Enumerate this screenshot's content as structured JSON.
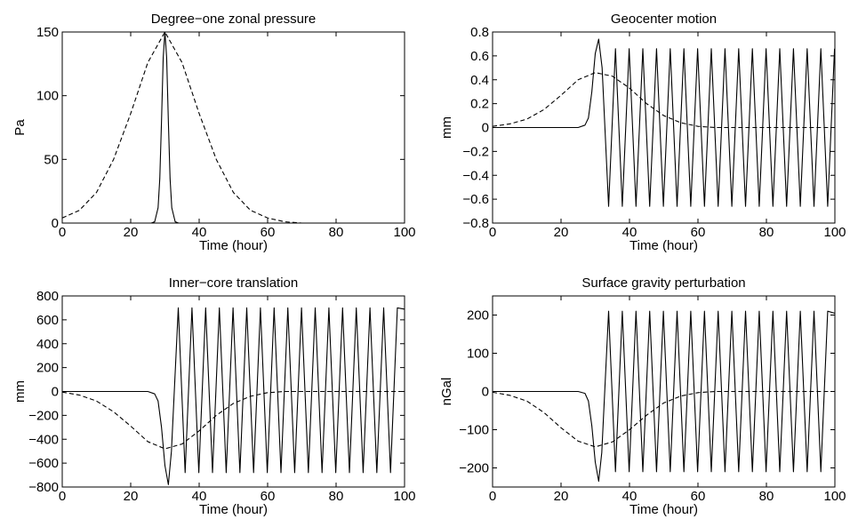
{
  "chart_data": [
    {
      "type": "line",
      "title": "Degree−one zonal pressure",
      "xlabel": "Time (hour)",
      "ylabel": "Pa",
      "xlim": [
        0,
        100
      ],
      "ylim": [
        0,
        150
      ],
      "xticks": [
        0,
        20,
        40,
        60,
        80,
        100
      ],
      "yticks": [
        0,
        50,
        100,
        150
      ],
      "x_tick_labels": [
        "0",
        "20",
        "40",
        "60",
        "80",
        "100"
      ],
      "y_tick_labels": [
        "0",
        "50",
        "100",
        "150"
      ],
      "grid": false,
      "series": [
        {
          "style": "solid",
          "x": [
            0,
            26,
            27,
            28,
            28.5,
            29,
            29.5,
            30,
            30.5,
            31,
            31.5,
            32,
            33,
            34,
            100
          ],
          "y": [
            0,
            0,
            1,
            12,
            35,
            80,
            130,
            150,
            130,
            80,
            35,
            12,
            1,
            0,
            0
          ]
        },
        {
          "style": "dashed",
          "x": [
            0,
            5,
            10,
            15,
            20,
            25,
            30,
            35,
            40,
            45,
            50,
            55,
            60,
            65,
            70,
            80,
            90,
            100
          ],
          "y": [
            4,
            10,
            24,
            50,
            86,
            126,
            150,
            126,
            86,
            50,
            24,
            10,
            4,
            1,
            0,
            0,
            0,
            0
          ]
        }
      ]
    },
    {
      "type": "line",
      "title": "Geocenter motion",
      "xlabel": "Time (hour)",
      "ylabel": "mm",
      "xlim": [
        0,
        100
      ],
      "ylim": [
        -0.8,
        0.8
      ],
      "xticks": [
        0,
        20,
        40,
        60,
        80,
        100
      ],
      "yticks": [
        -0.8,
        -0.6,
        -0.4,
        -0.2,
        0,
        0.2,
        0.4,
        0.6,
        0.8
      ],
      "x_tick_labels": [
        "0",
        "20",
        "40",
        "60",
        "80",
        "100"
      ],
      "y_tick_labels": [
        "−0.8",
        "−0.6",
        "−0.4",
        "−0.2",
        "0",
        "0.2",
        "0.4",
        "0.6",
        "0.8"
      ],
      "grid": false,
      "series": [
        {
          "style": "solid",
          "x": [
            0,
            25,
            27,
            28,
            29,
            30,
            31,
            32,
            33.9,
            35.9,
            37.9,
            39.9,
            41.9,
            43.9,
            45.9,
            47.9,
            49.9,
            51.9,
            53.9,
            55.9,
            57.9,
            59.9,
            61.9,
            63.9,
            65.9,
            67.9,
            69.9,
            71.9,
            73.9,
            75.9,
            77.9,
            79.9,
            81.9,
            83.9,
            85.9,
            87.9,
            89.9,
            91.9,
            93.9,
            95.9,
            97.9,
            99.9
          ],
          "y": [
            0,
            0,
            0.02,
            0.08,
            0.3,
            0.62,
            0.74,
            0.5,
            -0.66,
            0.66,
            -0.66,
            0.66,
            -0.66,
            0.66,
            -0.66,
            0.66,
            -0.66,
            0.66,
            -0.66,
            0.66,
            -0.66,
            0.66,
            -0.66,
            0.66,
            -0.66,
            0.66,
            -0.66,
            0.66,
            -0.66,
            0.66,
            -0.66,
            0.66,
            -0.66,
            0.66,
            -0.66,
            0.66,
            -0.66,
            0.66,
            -0.66,
            0.66,
            -0.66,
            0.66
          ]
        },
        {
          "style": "dashed",
          "x": [
            0,
            5,
            10,
            15,
            20,
            25,
            30,
            35,
            40,
            45,
            50,
            55,
            60,
            65,
            70,
            80,
            90,
            100
          ],
          "y": [
            0.01,
            0.03,
            0.07,
            0.15,
            0.27,
            0.4,
            0.46,
            0.43,
            0.33,
            0.2,
            0.1,
            0.04,
            0.01,
            0,
            0,
            0,
            0,
            0
          ]
        }
      ]
    },
    {
      "type": "line",
      "title": "Inner−core translation",
      "xlabel": "Time (hour)",
      "ylabel": "mm",
      "xlim": [
        0,
        100
      ],
      "ylim": [
        -800,
        800
      ],
      "xticks": [
        0,
        20,
        40,
        60,
        80,
        100
      ],
      "yticks": [
        -800,
        -600,
        -400,
        -200,
        0,
        200,
        400,
        600,
        800
      ],
      "x_tick_labels": [
        "0",
        "20",
        "40",
        "60",
        "80",
        "100"
      ],
      "y_tick_labels": [
        "−800",
        "−600",
        "−400",
        "−200",
        "0",
        "200",
        "400",
        "600",
        "800"
      ],
      "grid": false,
      "series": [
        {
          "style": "solid",
          "x": [
            0,
            25,
            27,
            28,
            29,
            30,
            31,
            31.9,
            33.9,
            35.9,
            37.9,
            39.9,
            41.9,
            43.9,
            45.9,
            47.9,
            49.9,
            51.9,
            53.9,
            55.9,
            57.9,
            59.9,
            61.9,
            63.9,
            65.9,
            67.9,
            69.9,
            71.9,
            73.9,
            75.9,
            77.9,
            79.9,
            81.9,
            83.9,
            85.9,
            87.9,
            89.9,
            91.9,
            93.9,
            95.9,
            97.9,
            99.9
          ],
          "y": [
            0,
            0,
            -20,
            -80,
            -300,
            -620,
            -780,
            -500,
            700,
            -680,
            700,
            -680,
            700,
            -680,
            700,
            -680,
            700,
            -680,
            700,
            -680,
            700,
            -680,
            700,
            -680,
            700,
            -680,
            700,
            -680,
            700,
            -680,
            700,
            -680,
            700,
            -680,
            700,
            -680,
            700,
            -680,
            700,
            -680,
            700,
            690
          ]
        },
        {
          "style": "dashed",
          "x": [
            0,
            5,
            10,
            15,
            20,
            25,
            30,
            35,
            40,
            45,
            50,
            55,
            60,
            65,
            70,
            80,
            90,
            100
          ],
          "y": [
            -5,
            -30,
            -80,
            -170,
            -290,
            -420,
            -480,
            -440,
            -330,
            -200,
            -100,
            -40,
            -10,
            0,
            0,
            0,
            0,
            0
          ]
        }
      ]
    },
    {
      "type": "line",
      "title": "Surface gravity perturbation",
      "xlabel": "Time (hour)",
      "ylabel": "nGal",
      "xlim": [
        0,
        100
      ],
      "ylim": [
        -250,
        250
      ],
      "xticks": [
        0,
        20,
        40,
        60,
        80,
        100
      ],
      "yticks": [
        -200,
        -100,
        0,
        100,
        200
      ],
      "x_tick_labels": [
        "0",
        "20",
        "40",
        "60",
        "80",
        "100"
      ],
      "y_tick_labels": [
        "−200",
        "−100",
        "0",
        "100",
        "200"
      ],
      "grid": false,
      "series": [
        {
          "style": "solid",
          "x": [
            0,
            25,
            27,
            28,
            29,
            30,
            31,
            31.9,
            33.9,
            35.9,
            37.9,
            39.9,
            41.9,
            43.9,
            45.9,
            47.9,
            49.9,
            51.9,
            53.9,
            55.9,
            57.9,
            59.9,
            61.9,
            63.9,
            65.9,
            67.9,
            69.9,
            71.9,
            73.9,
            75.9,
            77.9,
            79.9,
            81.9,
            83.9,
            85.9,
            87.9,
            89.9,
            91.9,
            93.9,
            95.9,
            97.9,
            99.9
          ],
          "y": [
            0,
            0,
            -5,
            -25,
            -90,
            -185,
            -235,
            -160,
            210,
            -210,
            210,
            -210,
            210,
            -210,
            210,
            -210,
            210,
            -210,
            210,
            -210,
            210,
            -210,
            210,
            -210,
            210,
            -210,
            210,
            -210,
            210,
            -210,
            210,
            -210,
            210,
            -210,
            210,
            -210,
            210,
            -210,
            210,
            -210,
            210,
            205
          ]
        },
        {
          "style": "dashed",
          "x": [
            0,
            5,
            10,
            15,
            20,
            25,
            30,
            35,
            40,
            45,
            50,
            55,
            60,
            65,
            70,
            80,
            90,
            100
          ],
          "y": [
            -2,
            -10,
            -25,
            -55,
            -95,
            -130,
            -145,
            -132,
            -100,
            -62,
            -30,
            -12,
            -3,
            0,
            0,
            0,
            0,
            0
          ]
        }
      ]
    }
  ]
}
